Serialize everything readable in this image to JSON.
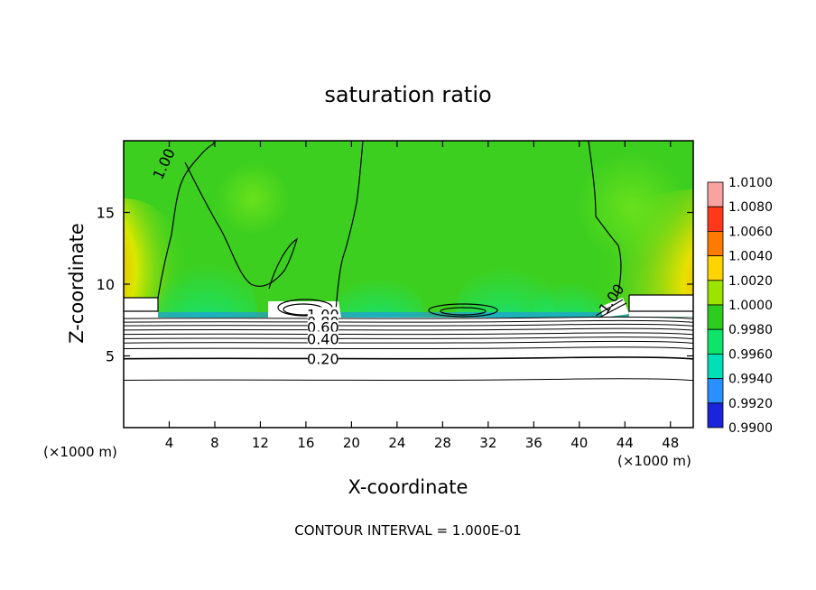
{
  "chart_data": {
    "type": "heatmap",
    "title": "saturation ratio",
    "xlabel": "X-coordinate",
    "ylabel": "Z-coordinate",
    "x_unit_label": "(×1000 m)",
    "z_unit_label": "(×1000 m)",
    "footnote": "CONTOUR INTERVAL = 1.000E-01",
    "xlim": [
      0,
      50
    ],
    "ylim": [
      0,
      20
    ],
    "x_ticks": [
      4,
      8,
      12,
      16,
      20,
      24,
      28,
      32,
      36,
      40,
      44,
      48
    ],
    "y_ticks": [
      5,
      10,
      15
    ],
    "colorbar": {
      "levels": [
        "1.0100",
        "1.0080",
        "1.0060",
        "1.0040",
        "1.0020",
        "1.0000",
        "0.9980",
        "0.9960",
        "0.9940",
        "0.9920",
        "0.9900"
      ],
      "colors": [
        "#f9a2a2",
        "#ff3a1a",
        "#ff7a00",
        "#ffd400",
        "#9be400",
        "#2ecc1e",
        "#10e36a",
        "#00e0b8",
        "#2a90ff",
        "#1a24d8",
        "#6a0aa0"
      ]
    },
    "contour_labels": [
      {
        "text": "1.00",
        "x": 3.5,
        "y": 18.4
      },
      {
        "text": "1.00",
        "x": 42.8,
        "y": 9.0
      },
      {
        "text": "1.00",
        "x": 17.5,
        "y": 7.9
      },
      {
        "text": "0.80",
        "x": 17.5,
        "y": 7.4
      },
      {
        "text": "0.60",
        "x": 17.5,
        "y": 7.0
      },
      {
        "text": "0.40",
        "x": 17.5,
        "y": 6.2
      },
      {
        "text": "0.20",
        "x": 17.5,
        "y": 4.8
      }
    ],
    "contour_lines_below": [
      7.6,
      7.35,
      7.1,
      6.8,
      6.5,
      6.2,
      5.9,
      5.5,
      4.8,
      3.3
    ]
  }
}
